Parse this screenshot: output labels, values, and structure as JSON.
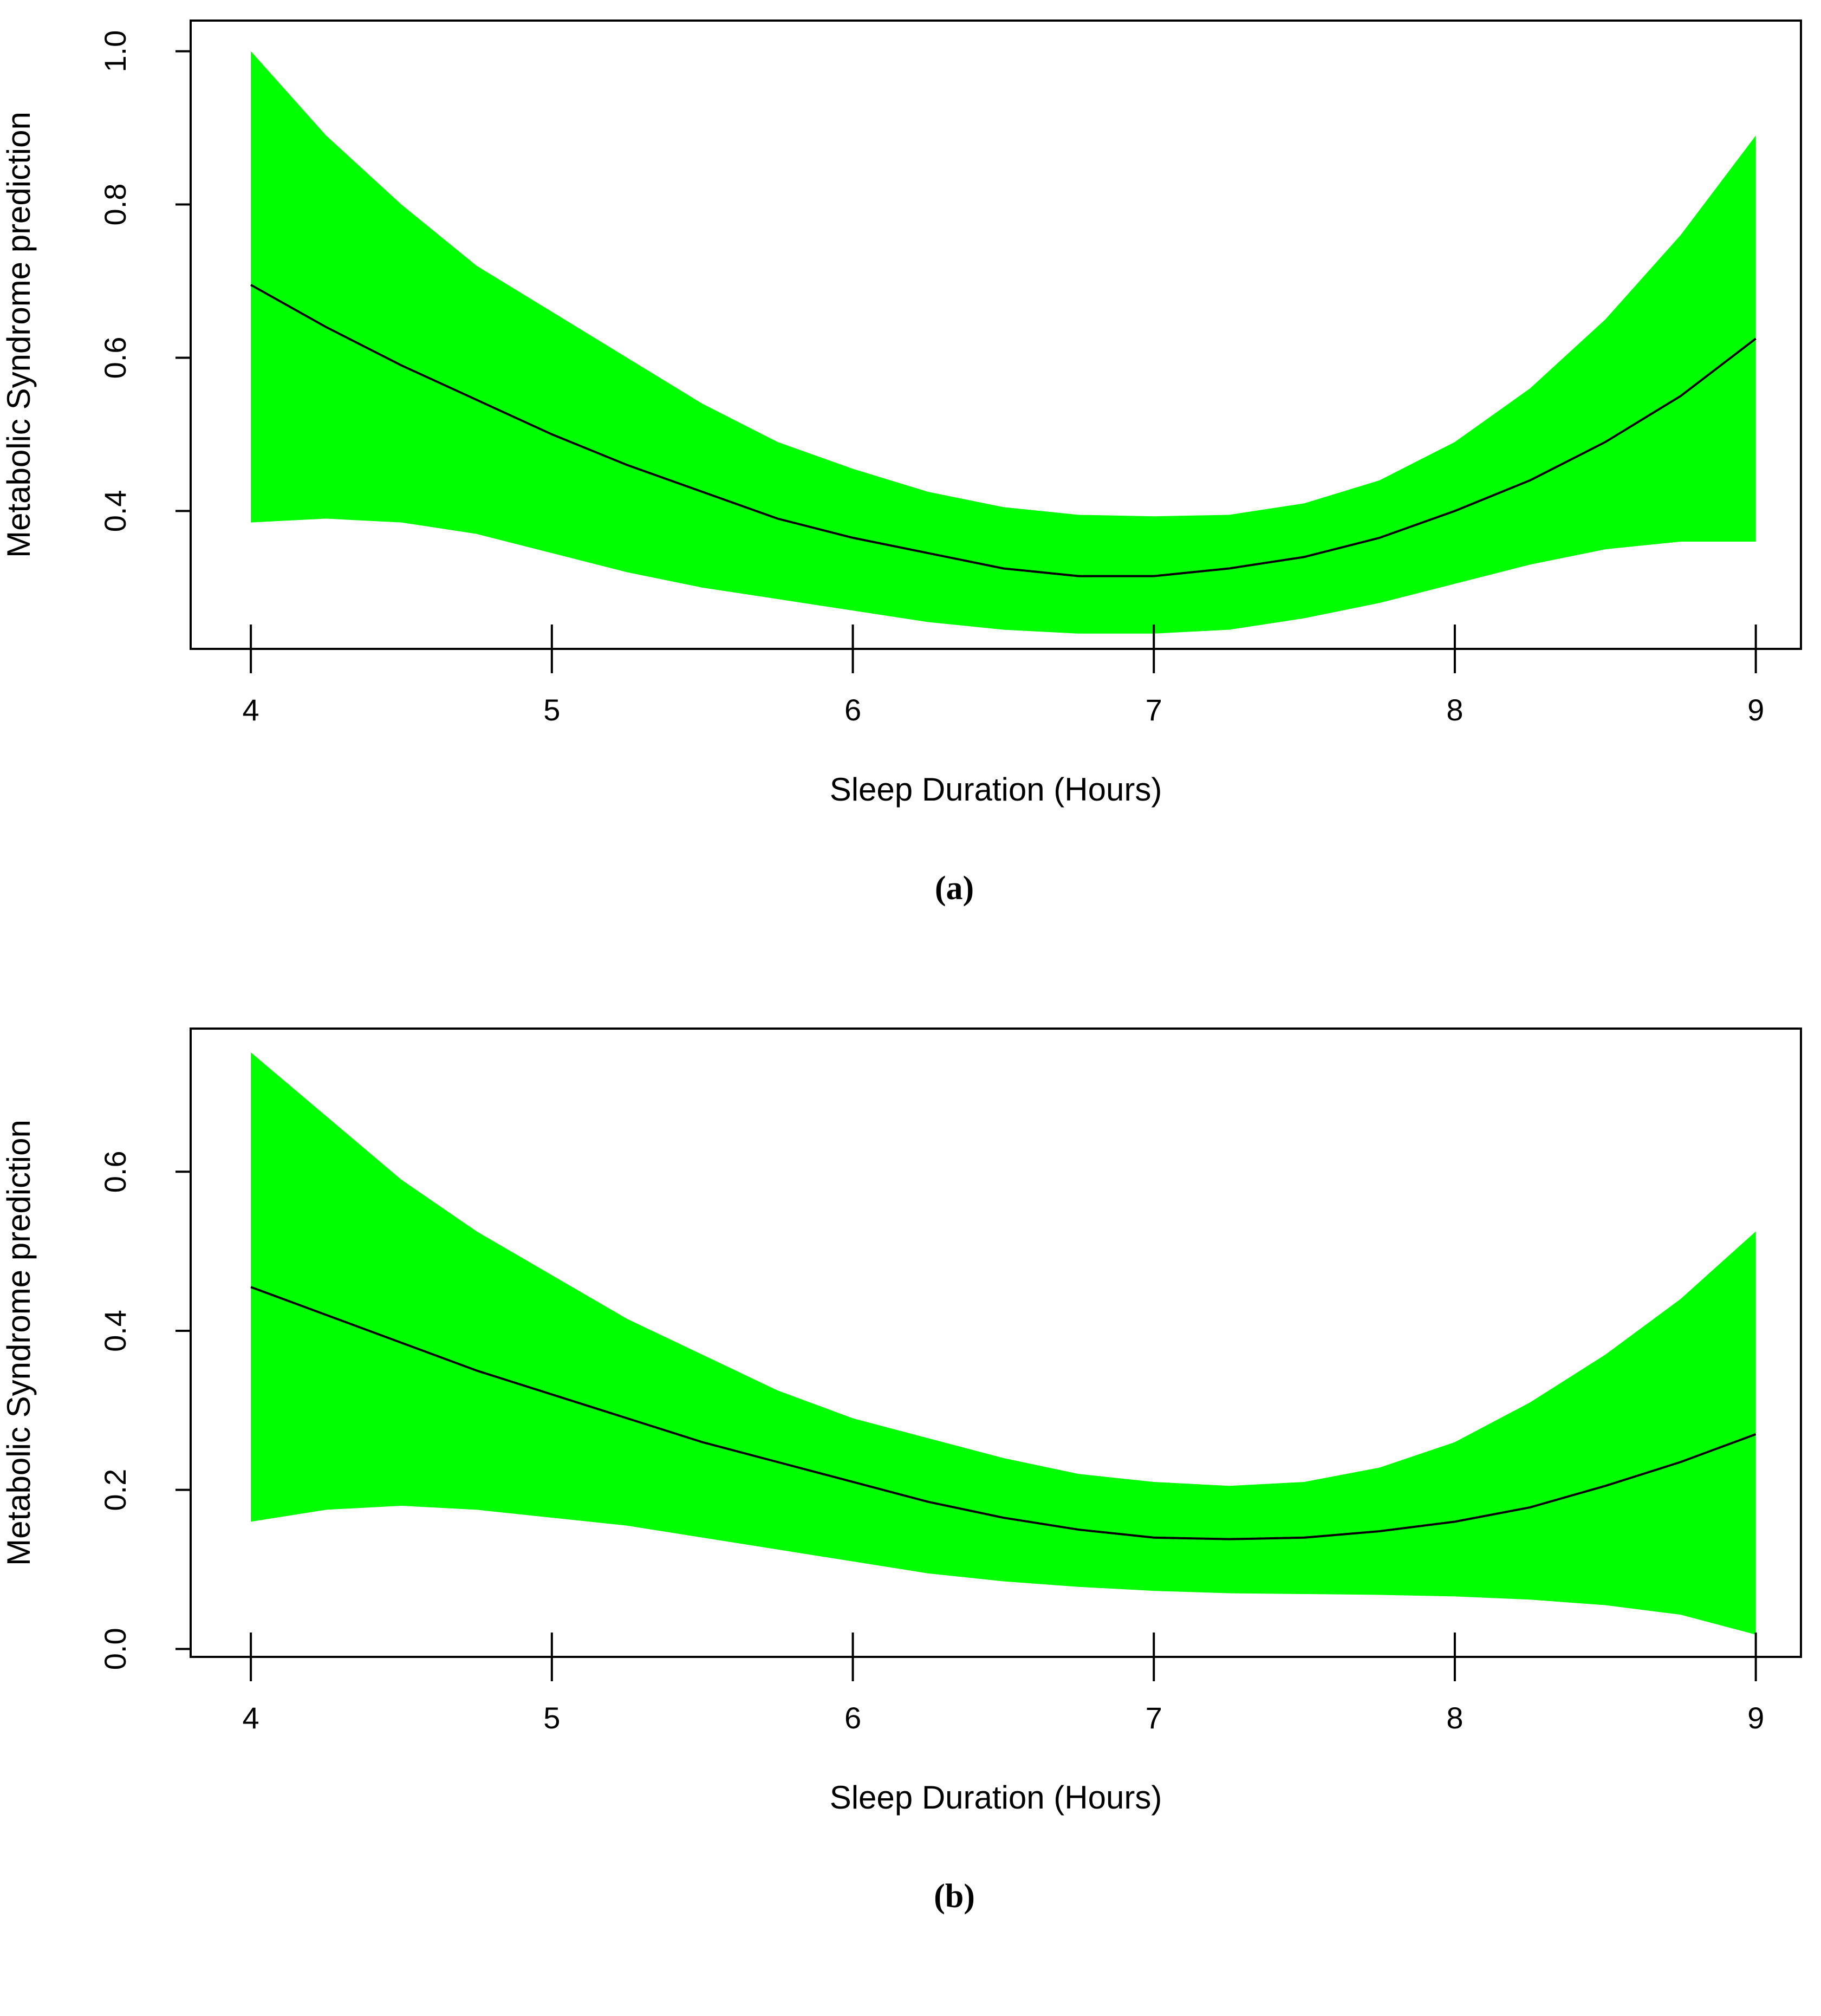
{
  "chart_data": [
    {
      "type": "area",
      "caption": "(a)",
      "xlabel": "Sleep Duration (Hours)",
      "ylabel": "Metabolic Syndrome prediction",
      "xlim": [
        3.8,
        9.15
      ],
      "ylim": [
        0.22,
        1.04
      ],
      "xticks": [
        4,
        5,
        6,
        7,
        8,
        9
      ],
      "yticks": [
        0.4,
        0.6,
        0.8,
        1.0
      ],
      "ytick_labels": [
        "0.4",
        "0.6",
        "0.8",
        "1.0"
      ],
      "fill_color": "#00ff00",
      "line_color": "#000000",
      "x": [
        4.0,
        4.25,
        4.5,
        4.75,
        5.0,
        5.25,
        5.5,
        5.75,
        6.0,
        6.25,
        6.5,
        6.75,
        7.0,
        7.25,
        7.5,
        7.75,
        8.0,
        8.25,
        8.5,
        8.75,
        9.0
      ],
      "series": [
        {
          "role": "fit",
          "values": [
            0.695,
            0.64,
            0.59,
            0.545,
            0.5,
            0.46,
            0.425,
            0.39,
            0.365,
            0.345,
            0.325,
            0.315,
            0.315,
            0.325,
            0.34,
            0.365,
            0.4,
            0.44,
            0.49,
            0.55,
            0.625
          ]
        },
        {
          "role": "upper",
          "values": [
            1.0,
            0.89,
            0.8,
            0.72,
            0.66,
            0.6,
            0.54,
            0.49,
            0.455,
            0.425,
            0.405,
            0.395,
            0.393,
            0.395,
            0.41,
            0.44,
            0.49,
            0.56,
            0.65,
            0.76,
            0.89
          ]
        },
        {
          "role": "lower",
          "values": [
            0.385,
            0.39,
            0.385,
            0.37,
            0.345,
            0.32,
            0.3,
            0.285,
            0.27,
            0.255,
            0.245,
            0.24,
            0.24,
            0.245,
            0.26,
            0.28,
            0.305,
            0.33,
            0.35,
            0.36,
            0.36
          ]
        }
      ]
    },
    {
      "type": "area",
      "caption": "(b)",
      "xlabel": "Sleep Duration (Hours)",
      "ylabel": "Metabolic Syndrome prediction",
      "xlim": [
        3.8,
        9.15
      ],
      "ylim": [
        -0.01,
        0.78
      ],
      "xticks": [
        4,
        5,
        6,
        7,
        8,
        9
      ],
      "yticks": [
        0.0,
        0.2,
        0.4,
        0.6
      ],
      "ytick_labels": [
        "0.0",
        "0.2",
        "0.4",
        "0.6"
      ],
      "fill_color": "#00ff00",
      "line_color": "#000000",
      "x": [
        4.0,
        4.25,
        4.5,
        4.75,
        5.0,
        5.25,
        5.5,
        5.75,
        6.0,
        6.25,
        6.5,
        6.75,
        7.0,
        7.25,
        7.5,
        7.75,
        8.0,
        8.25,
        8.5,
        8.75,
        9.0
      ],
      "series": [
        {
          "role": "fit",
          "values": [
            0.455,
            0.42,
            0.385,
            0.35,
            0.32,
            0.29,
            0.26,
            0.235,
            0.21,
            0.185,
            0.165,
            0.15,
            0.14,
            0.138,
            0.14,
            0.148,
            0.16,
            0.178,
            0.205,
            0.235,
            0.27
          ]
        },
        {
          "role": "upper",
          "values": [
            0.75,
            0.67,
            0.59,
            0.525,
            0.47,
            0.415,
            0.37,
            0.325,
            0.29,
            0.265,
            0.24,
            0.22,
            0.21,
            0.205,
            0.21,
            0.228,
            0.26,
            0.31,
            0.37,
            0.44,
            0.525
          ]
        },
        {
          "role": "lower",
          "values": [
            0.16,
            0.175,
            0.18,
            0.175,
            0.165,
            0.155,
            0.14,
            0.125,
            0.11,
            0.095,
            0.085,
            0.078,
            0.073,
            0.07,
            0.069,
            0.068,
            0.066,
            0.062,
            0.055,
            0.043,
            0.018
          ]
        }
      ]
    }
  ]
}
